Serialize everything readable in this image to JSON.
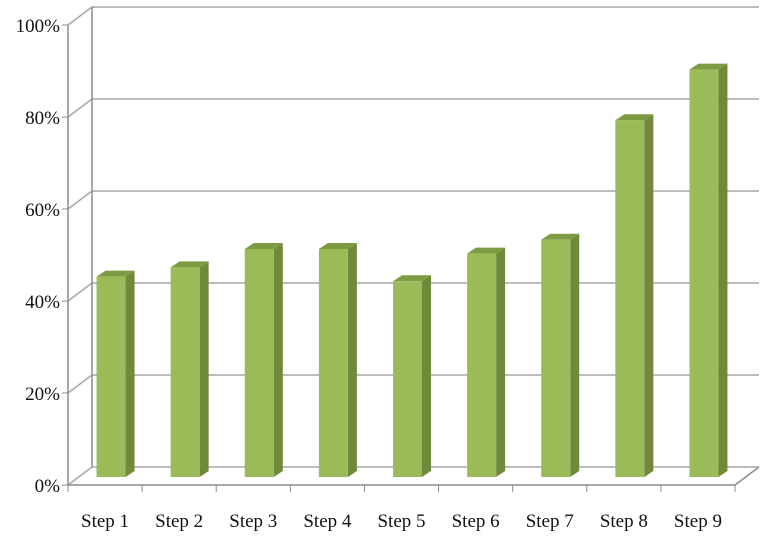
{
  "chart_data": {
    "type": "bar",
    "categories": [
      "Step 1",
      "Step 2",
      "Step 3",
      "Step 4",
      "Step 5",
      "Step 6",
      "Step 7",
      "Step 8",
      "Step 9"
    ],
    "values": [
      44,
      46,
      50,
      50,
      43,
      49,
      52,
      78,
      89
    ],
    "y_ticks": [
      "0%",
      "20%",
      "40%",
      "60%",
      "80%",
      "100%"
    ],
    "ylim": [
      0,
      100
    ],
    "grid": true,
    "legend": "none",
    "style": "3d-column",
    "colors": {
      "bar_front": "#9bbb59",
      "bar_side": "#6f8a3a",
      "bar_top": "#7d9b42",
      "gridline": "#a6a6a6",
      "axis": "#8c8c8c"
    }
  }
}
